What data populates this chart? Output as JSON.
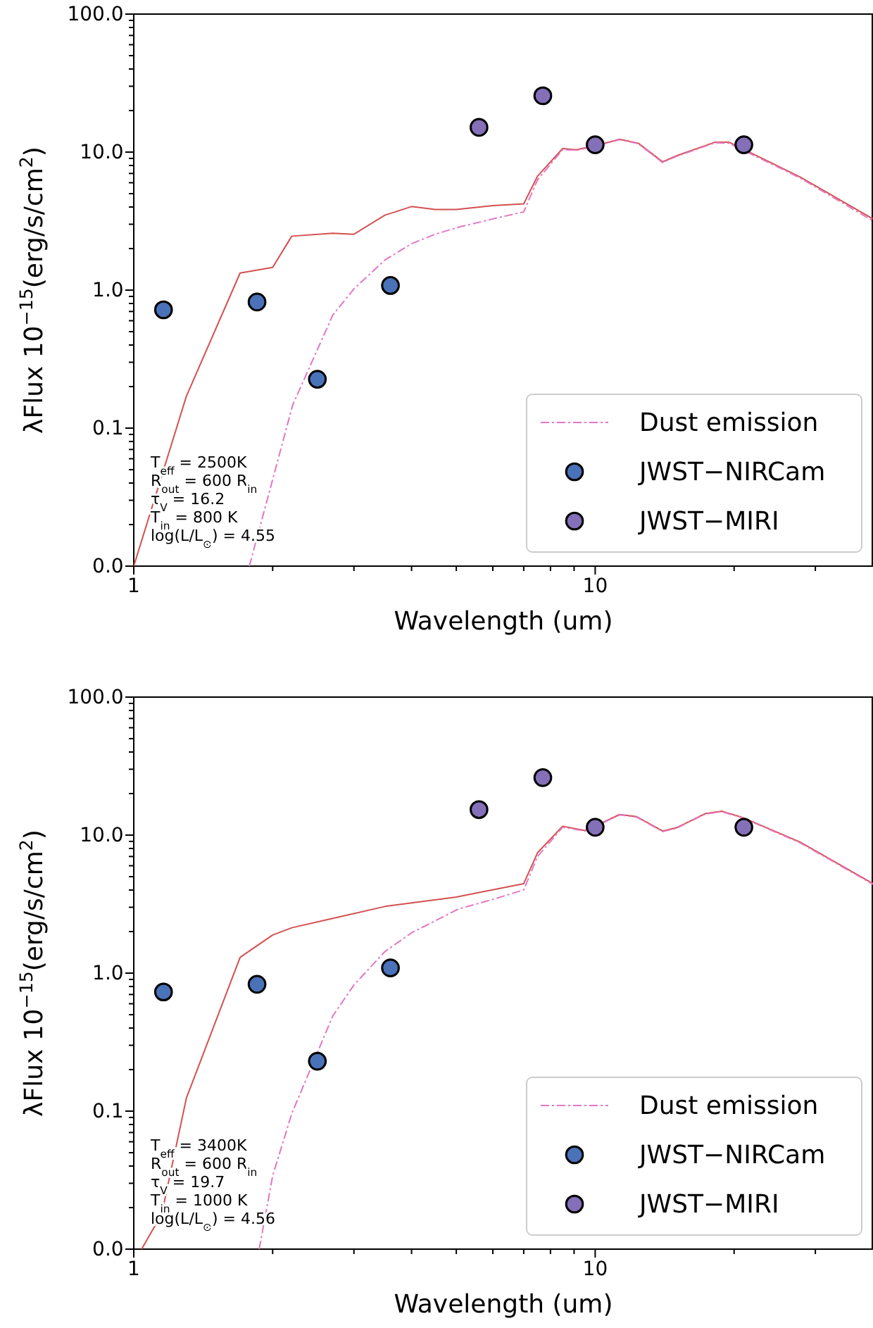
{
  "chart_data": [
    {
      "type": "scatter",
      "xlabel": "Wavelength (um)",
      "ylabel": "λFlux 10$^{−15}$(erg/s/cm$^{2}$)",
      "log": "xy",
      "grid": false,
      "legend": "bottom right",
      "xlim": [
        1,
        40
      ],
      "ylim": [
        0.01,
        100
      ],
      "xticks": [
        {
          "value": 1,
          "label": "1"
        },
        {
          "value": 2,
          "label": null
        },
        {
          "value": 3,
          "label": null
        },
        {
          "value": 4,
          "label": null
        },
        {
          "value": 5,
          "label": null
        },
        {
          "value": 6,
          "label": null
        },
        {
          "value": 7,
          "label": null
        },
        {
          "value": 8,
          "label": null
        },
        {
          "value": 9,
          "label": null
        },
        {
          "value": 10,
          "label": "10"
        },
        {
          "value": 20,
          "label": null
        },
        {
          "value": 30,
          "label": null
        }
      ],
      "yticks": [
        {
          "value": 0.01,
          "label": "0.0"
        },
        {
          "value": 0.02,
          "label": null
        },
        {
          "value": 0.03,
          "label": null
        },
        {
          "value": 0.04,
          "label": null
        },
        {
          "value": 0.05,
          "label": null
        },
        {
          "value": 0.06,
          "label": null
        },
        {
          "value": 0.07,
          "label": null
        },
        {
          "value": 0.08,
          "label": null
        },
        {
          "value": 0.09,
          "label": null
        },
        {
          "value": 0.1,
          "label": "0.1"
        },
        {
          "value": 0.2,
          "label": null
        },
        {
          "value": 0.3,
          "label": null
        },
        {
          "value": 0.4,
          "label": null
        },
        {
          "value": 0.5,
          "label": null
        },
        {
          "value": 0.6,
          "label": null
        },
        {
          "value": 0.7,
          "label": null
        },
        {
          "value": 0.8,
          "label": null
        },
        {
          "value": 0.9,
          "label": null
        },
        {
          "value": 1,
          "label": "1.0"
        },
        {
          "value": 2,
          "label": null
        },
        {
          "value": 3,
          "label": null
        },
        {
          "value": 4,
          "label": null
        },
        {
          "value": 5,
          "label": null
        },
        {
          "value": 6,
          "label": null
        },
        {
          "value": 7,
          "label": null
        },
        {
          "value": 8,
          "label": null
        },
        {
          "value": 9,
          "label": null
        },
        {
          "value": 10,
          "label": "10.0"
        },
        {
          "value": 20,
          "label": null
        },
        {
          "value": 30,
          "label": null
        },
        {
          "value": 40,
          "label": null
        },
        {
          "value": 50,
          "label": null
        },
        {
          "value": 60,
          "label": null
        },
        {
          "value": 70,
          "label": null
        },
        {
          "value": 80,
          "label": null
        },
        {
          "value": 90,
          "label": null
        },
        {
          "value": 100,
          "label": "100.0"
        }
      ],
      "series": [
        {
          "type": "line",
          "color": "#d45050",
          "line_style": "solid",
          "x": [
            1,
            1.3,
            1.7,
            2,
            2.2,
            2.7,
            3,
            3.5,
            4,
            4.5,
            5,
            6,
            7,
            7.5,
            8.5,
            9.1,
            10.3,
            11.3,
            12.4,
            14,
            15,
            18.2,
            19.5,
            27.8,
            40
          ],
          "values": [
            0.01,
            0.17,
            1.33,
            1.46,
            2.46,
            2.58,
            2.54,
            3.49,
            4.03,
            3.84,
            3.84,
            4.09,
            4.22,
            6.7,
            10.6,
            10.4,
            11.4,
            12.4,
            11.6,
            8.5,
            9.4,
            11.8,
            11.8,
            6.6,
            3.28
          ]
        },
        {
          "type": "line",
          "name": "Dust emission",
          "color": "#e377c2",
          "line_style": "dashed",
          "x": [
            1.78,
            1.96,
            2.21,
            2.7,
            3,
            3.5,
            4,
            4.5,
            5.06,
            6,
            7,
            7.5,
            8.5,
            9.1,
            10.3,
            11.3,
            12.4,
            14,
            15,
            18.2,
            19.5,
            27.8,
            40
          ],
          "values": [
            0.01,
            0.033,
            0.147,
            0.66,
            1.02,
            1.65,
            2.17,
            2.54,
            2.86,
            3.28,
            3.69,
            6.3,
            10.4,
            10.3,
            11.3,
            12.3,
            11.5,
            8.4,
            9.3,
            11.7,
            11.6,
            6.5,
            3.17
          ]
        },
        {
          "name": "JWST−NIRCam",
          "color": "#4a72b8",
          "marker": "circle",
          "x": [
            1.16,
            1.85,
            2.5,
            3.6
          ],
          "values": [
            0.72,
            0.82,
            0.226,
            1.08
          ]
        },
        {
          "name": "JWST−MIRI",
          "color": "#8470b8",
          "marker": "circle",
          "x": [
            5.6,
            7.7,
            10,
            21
          ],
          "values": [
            15.1,
            25.6,
            11.3,
            11.3
          ]
        }
      ],
      "annotations": [
        "T$_{eff}$ = 2500K",
        "R$_{out}$ = 600 R$_{in}$",
        "τ$_{V}$ = 16.2",
        "T$_{in}$ = 800 K",
        "log(L/L$_{⊙}$) = 4.55"
      ]
    },
    {
      "type": "scatter",
      "xlabel": "Wavelength (um)",
      "ylabel": "λFlux 10$^{−15}$(erg/s/cm$^{2}$)",
      "log": "xy",
      "grid": false,
      "legend": "bottom right",
      "xlim": [
        1,
        40
      ],
      "ylim": [
        0.01,
        100
      ],
      "xticks": [
        {
          "value": 1,
          "label": "1"
        },
        {
          "value": 2,
          "label": null
        },
        {
          "value": 3,
          "label": null
        },
        {
          "value": 4,
          "label": null
        },
        {
          "value": 5,
          "label": null
        },
        {
          "value": 6,
          "label": null
        },
        {
          "value": 7,
          "label": null
        },
        {
          "value": 8,
          "label": null
        },
        {
          "value": 9,
          "label": null
        },
        {
          "value": 10,
          "label": "10"
        },
        {
          "value": 20,
          "label": null
        },
        {
          "value": 30,
          "label": null
        }
      ],
      "yticks": [
        {
          "value": 0.01,
          "label": "0.0"
        },
        {
          "value": 0.02,
          "label": null
        },
        {
          "value": 0.03,
          "label": null
        },
        {
          "value": 0.04,
          "label": null
        },
        {
          "value": 0.05,
          "label": null
        },
        {
          "value": 0.06,
          "label": null
        },
        {
          "value": 0.07,
          "label": null
        },
        {
          "value": 0.08,
          "label": null
        },
        {
          "value": 0.09,
          "label": null
        },
        {
          "value": 0.1,
          "label": "0.1"
        },
        {
          "value": 0.2,
          "label": null
        },
        {
          "value": 0.3,
          "label": null
        },
        {
          "value": 0.4,
          "label": null
        },
        {
          "value": 0.5,
          "label": null
        },
        {
          "value": 0.6,
          "label": null
        },
        {
          "value": 0.7,
          "label": null
        },
        {
          "value": 0.8,
          "label": null
        },
        {
          "value": 0.9,
          "label": null
        },
        {
          "value": 1,
          "label": "1.0"
        },
        {
          "value": 2,
          "label": null
        },
        {
          "value": 3,
          "label": null
        },
        {
          "value": 4,
          "label": null
        },
        {
          "value": 5,
          "label": null
        },
        {
          "value": 6,
          "label": null
        },
        {
          "value": 7,
          "label": null
        },
        {
          "value": 8,
          "label": null
        },
        {
          "value": 9,
          "label": null
        },
        {
          "value": 10,
          "label": "10.0"
        },
        {
          "value": 20,
          "label": null
        },
        {
          "value": 30,
          "label": null
        },
        {
          "value": 40,
          "label": null
        },
        {
          "value": 50,
          "label": null
        },
        {
          "value": 60,
          "label": null
        },
        {
          "value": 70,
          "label": null
        },
        {
          "value": 80,
          "label": null
        },
        {
          "value": 90,
          "label": null
        },
        {
          "value": 100,
          "label": "100.0"
        }
      ],
      "series": [
        {
          "type": "line",
          "color": "#d45050",
          "line_style": "solid",
          "x": [
            1.04,
            1.15,
            1.3,
            1.7,
            2,
            2.2,
            2.7,
            3.5,
            5,
            7,
            7.5,
            8.5,
            9.5,
            10.3,
            11.3,
            12.3,
            14,
            15,
            17.3,
            18.8,
            20.9,
            27.8,
            40
          ],
          "values": [
            0.01,
            0.018,
            0.124,
            1.3,
            1.89,
            2.13,
            2.49,
            3.04,
            3.56,
            4.45,
            7.45,
            11.6,
            10.8,
            12.2,
            14.1,
            13.6,
            10.7,
            11.3,
            14.3,
            14.9,
            13.4,
            8.9,
            4.45
          ]
        },
        {
          "type": "line",
          "name": "Dust emission",
          "color": "#e377c2",
          "line_style": "dashed",
          "x": [
            1.87,
            2,
            2.2,
            2.7,
            3,
            3.5,
            4,
            5.06,
            6,
            7,
            7.5,
            8.5,
            9.5,
            10.3,
            11.3,
            12.3,
            14,
            15,
            17.3,
            18.8,
            20.9,
            27.8,
            40
          ],
          "values": [
            0.01,
            0.034,
            0.096,
            0.49,
            0.82,
            1.43,
            1.96,
            2.92,
            3.42,
            4.01,
            7,
            11.4,
            10.7,
            12.1,
            14,
            13.5,
            10.6,
            11.2,
            14.2,
            14.8,
            13.3,
            8.8,
            4.4
          ]
        },
        {
          "name": "JWST−NIRCam",
          "color": "#4a72b8",
          "marker": "circle",
          "x": [
            1.16,
            1.85,
            2.5,
            3.6
          ],
          "values": [
            0.73,
            0.83,
            0.23,
            1.09
          ]
        },
        {
          "name": "JWST−MIRI",
          "color": "#8470b8",
          "marker": "circle",
          "x": [
            5.6,
            7.7,
            10,
            21
          ],
          "values": [
            15.3,
            26.1,
            11.4,
            11.4
          ]
        }
      ],
      "annotations": [
        "T$_{eff}$ = 3400K",
        "R$_{out}$ = 600 R$_{in}$",
        "τ$_{V}$ = 19.7",
        "T$_{in}$ = 1000 K",
        "log(L/L$_{⊙}$) = 4.56"
      ]
    }
  ]
}
